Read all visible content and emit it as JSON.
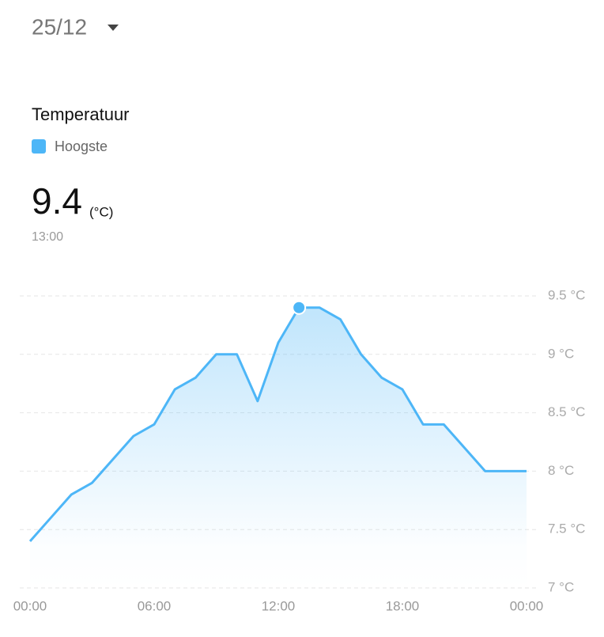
{
  "header": {
    "date": "25/12"
  },
  "selected": {
    "value": 9.4,
    "unit": "(°C)",
    "time": "13:00"
  },
  "chart_data": {
    "type": "line",
    "title": "Temperatuur",
    "categories": [
      "00:00",
      null,
      null,
      null,
      null,
      null,
      "06:00",
      null,
      null,
      null,
      null,
      null,
      "12:00",
      null,
      null,
      null,
      null,
      null,
      "18:00",
      null,
      null,
      null,
      null,
      null,
      "00:00"
    ],
    "series": [
      {
        "name": "Hoogste",
        "color": "#4db6f7",
        "values": [
          7.4,
          7.6,
          7.8,
          7.9,
          8.1,
          8.3,
          8.4,
          8.7,
          8.8,
          9.0,
          9.0,
          8.6,
          9.1,
          9.4,
          9.4,
          9.3,
          9.0,
          8.8,
          8.7,
          8.4,
          8.4,
          8.2,
          8.0,
          8.0,
          8.0
        ]
      }
    ],
    "ylim": [
      7,
      9.5
    ],
    "yticks": [
      {
        "value": 7,
        "label": "7 °C"
      },
      {
        "value": 7.5,
        "label": "7.5 °C"
      },
      {
        "value": 8,
        "label": "8 °C"
      },
      {
        "value": 8.5,
        "label": "8.5 °C"
      },
      {
        "value": 9,
        "label": "9 °C"
      },
      {
        "value": 9.5,
        "label": "9.5 °C"
      }
    ],
    "grid": true
  }
}
